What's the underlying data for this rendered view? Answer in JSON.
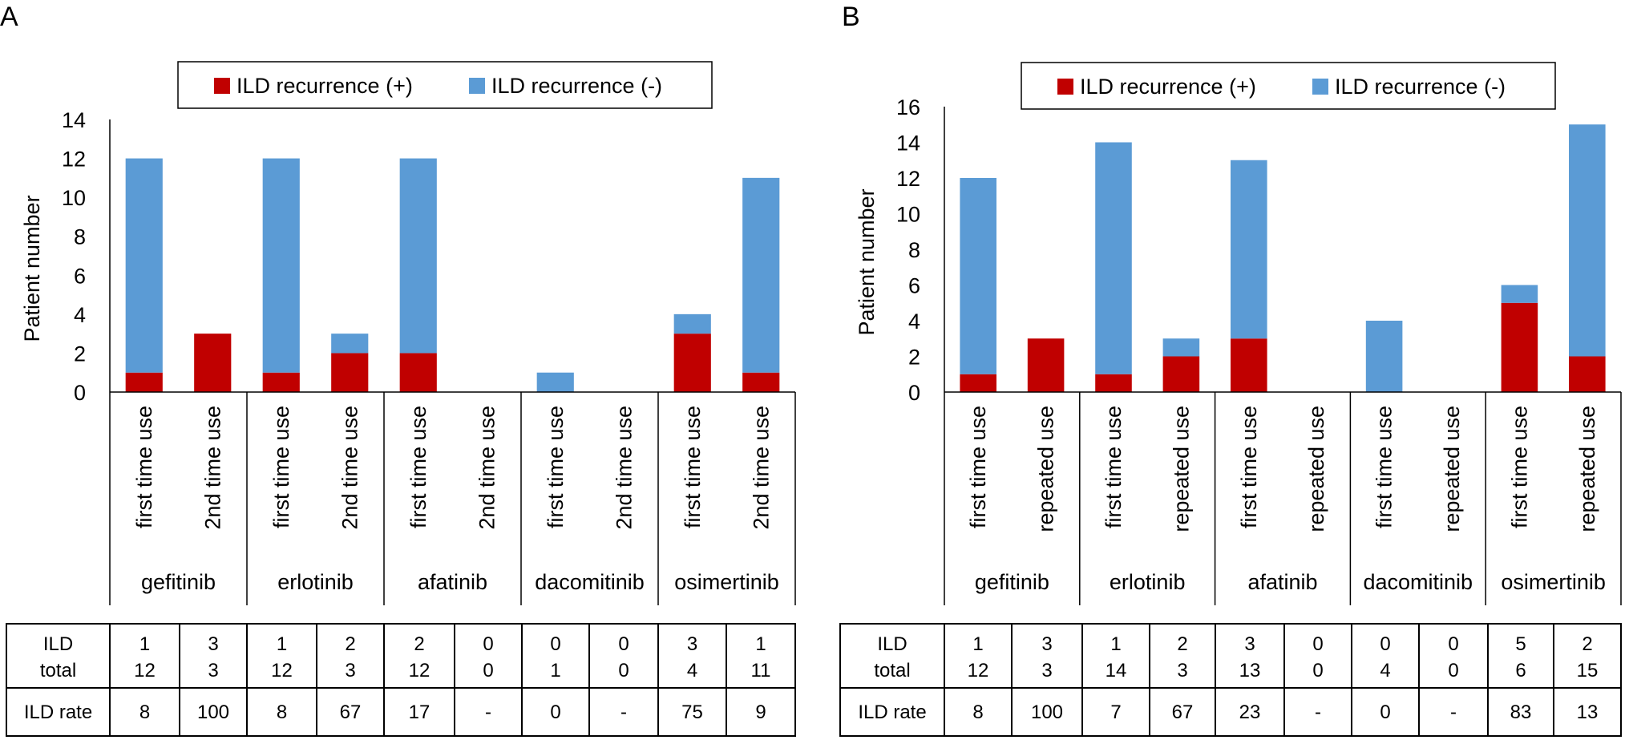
{
  "colors": {
    "positive": "#C00000",
    "negative": "#5B9BD5",
    "axis": "#000000"
  },
  "chart_data": [
    {
      "type": "bar",
      "stacked": true,
      "panel_label": "A",
      "ylabel": "Patient number",
      "ylim": [
        0,
        14
      ],
      "yticks": [
        0,
        2,
        4,
        6,
        8,
        10,
        12,
        14
      ],
      "legend": [
        "ILD recurrence (+)",
        "ILD recurrence (-)"
      ],
      "groups": [
        "gefitinib",
        "erlotinib",
        "afatinib",
        "dacomitinib",
        "osimertinib"
      ],
      "categories": [
        "first time use",
        "2nd time use",
        "first time use",
        "2nd time use",
        "first time use",
        "2nd time use",
        "first time use",
        "2nd time use",
        "first time use",
        "2nd time use"
      ],
      "series": [
        {
          "name": "ILD recurrence (+)",
          "values": [
            1,
            3,
            1,
            2,
            2,
            0,
            0,
            0,
            3,
            1
          ]
        },
        {
          "name": "ILD recurrence (-)",
          "values": [
            11,
            0,
            11,
            1,
            10,
            0,
            1,
            0,
            1,
            10
          ]
        }
      ],
      "table": {
        "row1_label": "ILD",
        "row2_label": "total",
        "rate_label": "ILD rate",
        "ild": [
          "1",
          "3",
          "1",
          "2",
          "2",
          "0",
          "0",
          "0",
          "3",
          "1"
        ],
        "total": [
          "12",
          "3",
          "12",
          "3",
          "12",
          "0",
          "1",
          "0",
          "4",
          "11"
        ],
        "rate": [
          "8",
          "100",
          "8",
          "67",
          "17",
          "-",
          "0",
          "-",
          "75",
          "9"
        ]
      }
    },
    {
      "type": "bar",
      "stacked": true,
      "panel_label": "B",
      "ylabel": "Patient number",
      "ylim": [
        0,
        16
      ],
      "yticks": [
        0,
        2,
        4,
        6,
        8,
        10,
        12,
        14,
        16
      ],
      "legend": [
        "ILD recurrence (+)",
        "ILD recurrence (-)"
      ],
      "groups": [
        "gefitinib",
        "erlotinib",
        "afatinib",
        "dacomitinib",
        "osimertinib"
      ],
      "categories": [
        "first time use",
        "repeated use",
        "first time use",
        "repeated use",
        "first time use",
        "repeated use",
        "first time use",
        "repeated use",
        "first time use",
        "repeated use"
      ],
      "series": [
        {
          "name": "ILD recurrence (+)",
          "values": [
            1,
            3,
            1,
            2,
            3,
            0,
            0,
            0,
            5,
            2
          ]
        },
        {
          "name": "ILD recurrence (-)",
          "values": [
            11,
            0,
            13,
            1,
            10,
            0,
            4,
            0,
            1,
            13
          ]
        }
      ],
      "table": {
        "row1_label": "ILD",
        "row2_label": "total",
        "rate_label": "ILD rate",
        "ild": [
          "1",
          "3",
          "1",
          "2",
          "3",
          "0",
          "0",
          "0",
          "5",
          "2"
        ],
        "total": [
          "12",
          "3",
          "14",
          "3",
          "13",
          "0",
          "4",
          "0",
          "6",
          "15"
        ],
        "rate": [
          "8",
          "100",
          "7",
          "67",
          "23",
          "-",
          "0",
          "-",
          "83",
          "13"
        ]
      }
    }
  ]
}
